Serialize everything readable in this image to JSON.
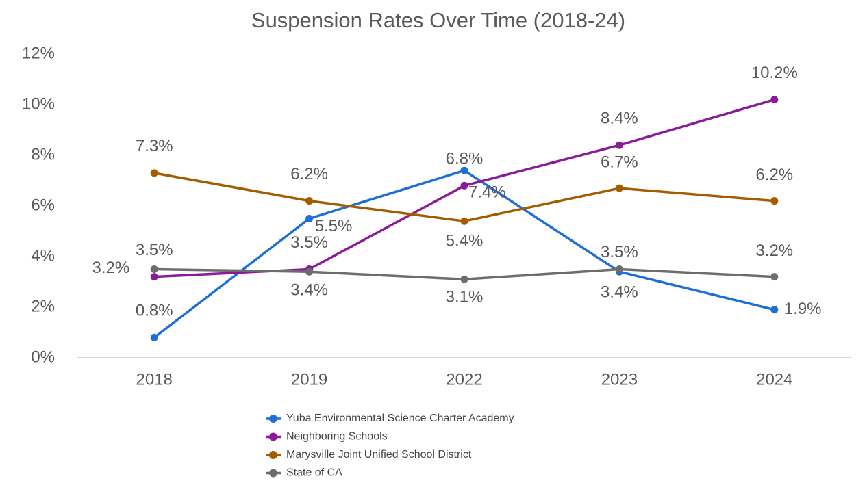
{
  "chart_data": {
    "type": "line",
    "title": "Suspension Rates Over Time (2018-24)",
    "categories": [
      "2018",
      "2019",
      "2022",
      "2023",
      "2024"
    ],
    "series": [
      {
        "name": "Yuba Environmental Science Charter Academy",
        "color": "#1f6fd8",
        "values": [
          0.8,
          5.5,
          7.4,
          3.4,
          1.9
        ],
        "value_labels": [
          "0.8%",
          "5.5%",
          "7.4%",
          "3.4%",
          "1.9%"
        ]
      },
      {
        "name": "Neighboring Schools",
        "color": "#8b1a9a",
        "values": [
          3.2,
          3.5,
          6.8,
          8.4,
          10.2
        ],
        "value_labels": [
          "3.2%",
          "3.5%",
          "6.8%",
          "8.4%",
          "10.2%"
        ]
      },
      {
        "name": "Marysville Joint Unified School District",
        "color": "#a35c00",
        "values": [
          7.3,
          6.2,
          5.4,
          6.7,
          6.2
        ],
        "value_labels": [
          "7.3%",
          "6.2%",
          "5.4%",
          "6.7%",
          "6.2%"
        ]
      },
      {
        "name": "State of CA",
        "color": "#6d6d6d",
        "values": [
          3.5,
          3.4,
          3.1,
          3.5,
          3.2
        ],
        "value_labels": [
          "3.5%",
          "3.4%",
          "3.1%",
          "3.5%",
          "3.2%"
        ]
      }
    ],
    "ylim": [
      0,
      12
    ],
    "yticks": [
      {
        "value": 0,
        "label": "0%"
      },
      {
        "value": 2,
        "label": "2%"
      },
      {
        "value": 4,
        "label": "4%"
      },
      {
        "value": 6,
        "label": "6%"
      },
      {
        "value": 8,
        "label": "8%"
      },
      {
        "value": 10,
        "label": "10%"
      },
      {
        "value": 12,
        "label": "12%"
      }
    ],
    "grid": false
  }
}
